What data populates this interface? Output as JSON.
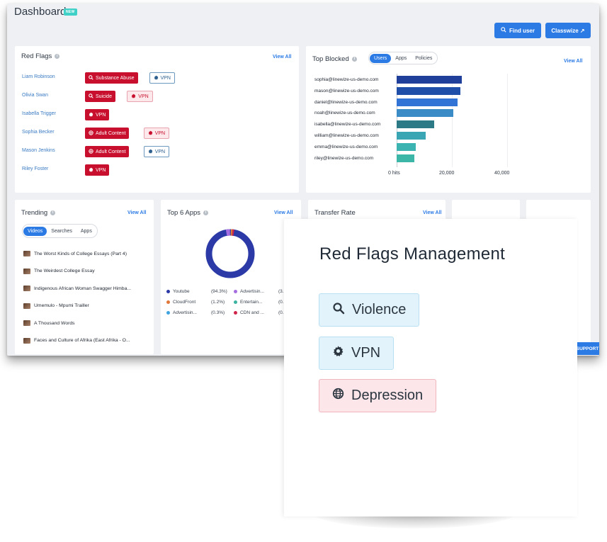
{
  "header": {
    "title": "Dashboard",
    "badge": "NEW",
    "find_user_label": "Find user",
    "classwize_label": "Classwize ↗"
  },
  "red_flags": {
    "title": "Red Flags",
    "view_all": "View All",
    "rows": [
      {
        "name": "Liam Robinson",
        "chips": [
          {
            "label": "Substance Abuse",
            "style": "red",
            "icon": "search-icon"
          },
          {
            "label": "VPN",
            "style": "outline-blue",
            "icon": "gear-icon"
          }
        ]
      },
      {
        "name": "Olivia Swan",
        "chips": [
          {
            "label": "Suicide",
            "style": "red",
            "icon": "search-icon"
          },
          {
            "label": "VPN",
            "style": "outline-red",
            "icon": "gear-icon"
          }
        ]
      },
      {
        "name": "Isabella Trigger",
        "chips": [
          {
            "label": "VPN",
            "style": "red",
            "icon": "gear-icon"
          }
        ]
      },
      {
        "name": "Sophia Becker",
        "chips": [
          {
            "label": "Adult Content",
            "style": "red",
            "icon": "globe-icon"
          },
          {
            "label": "VPN",
            "style": "outline-red",
            "icon": "gear-icon"
          }
        ]
      },
      {
        "name": "Mason Jenkins",
        "chips": [
          {
            "label": "Adult Content",
            "style": "red",
            "icon": "globe-icon"
          },
          {
            "label": "VPN",
            "style": "outline-blue",
            "icon": "gear-icon"
          }
        ]
      },
      {
        "name": "Riley Foster",
        "chips": [
          {
            "label": "VPN",
            "style": "red",
            "icon": "gear-icon"
          }
        ]
      }
    ]
  },
  "top_blocked": {
    "title": "Top Blocked",
    "view_all": "View All",
    "tabs": [
      "Users",
      "Apps",
      "Policies"
    ],
    "active_tab": "Users",
    "xticks": [
      "0 hits",
      "20,000",
      "40,000"
    ]
  },
  "chart_data": {
    "type": "bar",
    "orientation": "horizontal",
    "categories": [
      "sophia@linewize-us-demo.com",
      "mason@linewize-us-demo.com",
      "daniel@linewize-us-demo.com",
      "noah@linewize-us-demo.com",
      "isabella@linewize-us-demo.com",
      "william@linewize-us-demo.com",
      "emma@linewize-us-demo.com",
      "riley@linewize-us-demo.com"
    ],
    "values": [
      23500,
      23200,
      22000,
      20500,
      13500,
      10500,
      6800,
      6500
    ],
    "xlim": [
      0,
      40000
    ],
    "colors": [
      "#1f3f9a",
      "#1f4fa8",
      "#3274d6",
      "#3a8bc6",
      "#2c7a85",
      "#3aa6b3",
      "#3bb3b0",
      "#3cb7a7"
    ]
  },
  "trending": {
    "title": "Trending",
    "view_all": "View All",
    "tabs": [
      "Videos",
      "Searches",
      "Apps"
    ],
    "active_tab": "Videos",
    "items": [
      "The Worst Kinds of College Essays (Part 4)",
      "The Weirdest College Essay",
      "Indigenous African Woman Swagger Himba...",
      "Umemulo - Mpumi Trailler",
      "A Thousand Words",
      "Faces and Culture of Afrika (East Afrika - O..."
    ]
  },
  "top_apps": {
    "title": "Top 6 Apps",
    "view_all": "View All",
    "legend": [
      {
        "label": "Youtube",
        "pct": "(94.3%)",
        "color": "#2b3aa7"
      },
      {
        "label": "Advertisin...",
        "pct": "(3.",
        "color": "#a56de0"
      },
      {
        "label": "CloudFront",
        "pct": "(1.2%)",
        "color": "#e0783a"
      },
      {
        "label": "Entertain...",
        "pct": "(0.",
        "color": "#3bb3a0"
      },
      {
        "label": "Advertisin...",
        "pct": "(0.3%)",
        "color": "#3fa3e0"
      },
      {
        "label": "CDN and ...",
        "pct": "(0.",
        "color": "#d0254a"
      }
    ]
  },
  "transfer_rate": {
    "title": "Transfer Rate",
    "view_all": "View All"
  },
  "support": "SUPPORT",
  "overlay": {
    "title": "Red Flags Management",
    "chips": [
      {
        "label": "Violence",
        "icon": "search-icon"
      },
      {
        "label": "VPN",
        "icon": "gear-icon"
      },
      {
        "label": "Depression",
        "icon": "globe-icon"
      }
    ]
  }
}
